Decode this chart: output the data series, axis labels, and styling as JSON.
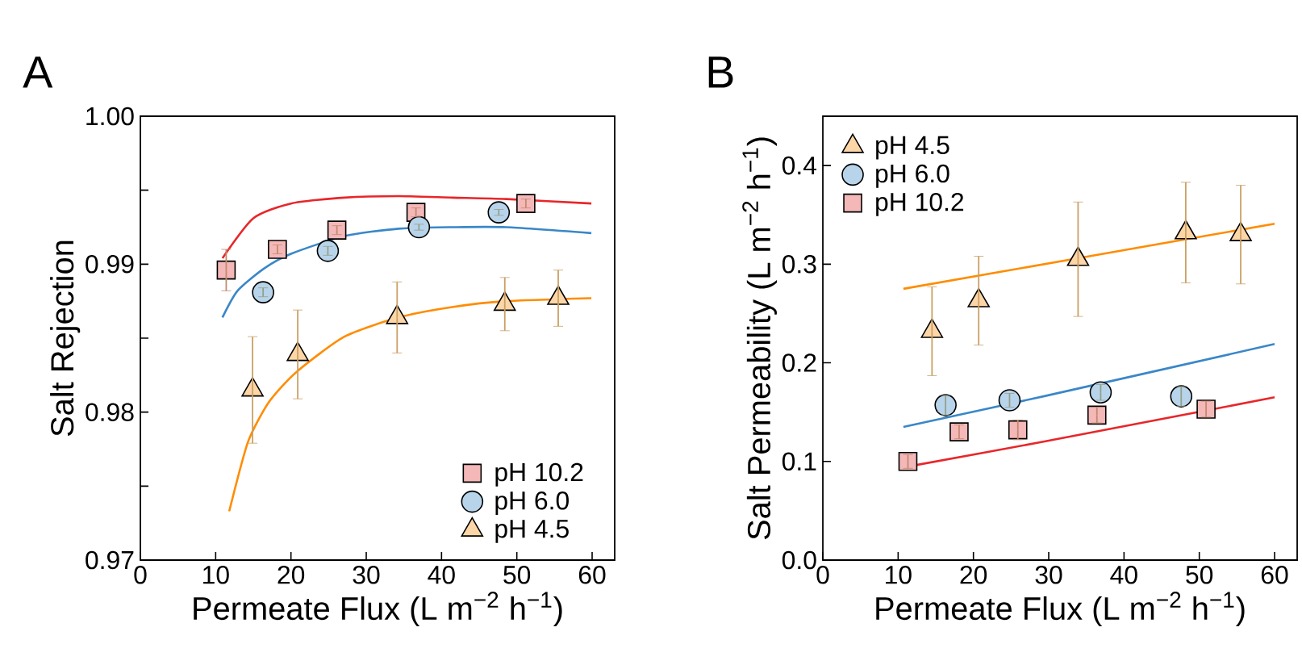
{
  "chart_data": [
    {
      "type": "scatter",
      "title": "A",
      "xlabel": "Permeate Flux (L m$^{−2}$ h$^{−1}$)",
      "ylabel": "Salt Rejection",
      "xlim": [
        0,
        63
      ],
      "ylim": [
        0.97,
        1.0
      ],
      "xticks": [
        0,
        10,
        20,
        30,
        40,
        50,
        60
      ],
      "yticks": [
        0.97,
        {
          "value": 0.975,
          "label": null
        },
        0.98,
        {
          "value": 0.985,
          "label": null
        },
        0.99,
        {
          "value": 0.995,
          "label": null
        },
        {
          "value": 1.0,
          "label": "1.00"
        }
      ],
      "legend": "bottom right",
      "grid": false,
      "series": [
        {
          "name": "pH 10.2",
          "marker": "square",
          "color": "#f4b8b8",
          "x": [
            11.4,
            18.2,
            26.1,
            36.6,
            51.2
          ],
          "values": [
            0.9896,
            0.991,
            0.9923,
            0.9935,
            0.9941
          ],
          "errors": [
            0.0014,
            0.0003,
            0.0003,
            0.0003,
            0.0003
          ]
        },
        {
          "name": "pH 6.0",
          "marker": "circle",
          "color": "#b8d4ea",
          "x": [
            16.3,
            24.9,
            37.0,
            47.6
          ],
          "values": [
            0.9881,
            0.9909,
            0.9925,
            0.9935
          ],
          "errors": [
            0.0003,
            0.0003,
            0.0002,
            0.0002
          ]
        },
        {
          "name": "pH 4.5",
          "marker": "triangle",
          "color": "#fdd6a8",
          "x": [
            14.9,
            20.9,
            34.1,
            48.4,
            55.5
          ],
          "values": [
            0.9815,
            0.9839,
            0.9864,
            0.9873,
            0.9877
          ],
          "errors": [
            0.0036,
            0.003,
            0.0024,
            0.0018,
            0.0019
          ]
        },
        {
          "type": "line",
          "color": "#e8262a",
          "x": [
            10.9,
            15,
            20,
            27.1,
            34.3,
            41.4,
            48.6,
            59.9
          ],
          "values": [
            0.9904,
            0.9931,
            0.9941,
            0.9945,
            0.9946,
            0.9945,
            0.9944,
            0.9941
          ]
        },
        {
          "type": "line",
          "color": "#3a87c8",
          "x": [
            10.9,
            12.9,
            16.4,
            20,
            27.1,
            34.3,
            41.4,
            48.6,
            59.9
          ],
          "values": [
            0.9864,
            0.9882,
            0.9897,
            0.9907,
            0.9919,
            0.9924,
            0.9925,
            0.9925,
            0.9921
          ]
        },
        {
          "type": "line",
          "color": "#ff8c00",
          "x": [
            11.8,
            14.3,
            17.1,
            20.7,
            27.1,
            34.3,
            41.4,
            48.6,
            59.9
          ],
          "values": [
            0.9733,
            0.978,
            0.9807,
            0.9827,
            0.9851,
            0.9864,
            0.9871,
            0.9875,
            0.9877
          ]
        }
      ]
    },
    {
      "type": "scatter",
      "title": "B",
      "xlabel": "Permeate Flux (L m$^{−2}$ h$^{−1}$)",
      "ylabel": "Salt Permeability (L m$^{−2}$ h$^{−1}$)",
      "xlim": [
        0,
        63
      ],
      "ylim": [
        0,
        0.45
      ],
      "xticks": [
        0,
        10,
        20,
        30,
        40,
        50,
        60
      ],
      "yticks": [
        {
          "value": 0,
          "label": "0.0"
        },
        0.1,
        0.2,
        0.3,
        0.4
      ],
      "legend": "top left",
      "grid": false,
      "series": [
        {
          "name": "pH 4.5",
          "marker": "triangle",
          "color": "#fdd6a8",
          "x": [
            14.5,
            20.7,
            33.9,
            48.2,
            55.5
          ],
          "values": [
            0.232,
            0.263,
            0.305,
            0.332,
            0.33
          ],
          "errors": [
            0.045,
            0.045,
            0.058,
            0.051,
            0.05
          ]
        },
        {
          "name": "pH 6.0",
          "marker": "circle",
          "color": "#b8d4ea",
          "x": [
            16.3,
            24.8,
            36.9,
            47.6
          ],
          "values": [
            0.157,
            0.162,
            0.17,
            0.166
          ],
          "errors": [
            0.01,
            0.007,
            0.008,
            0.01
          ]
        },
        {
          "name": "pH 10.2",
          "marker": "square",
          "color": "#f4b8b8",
          "x": [
            11.3,
            18.1,
            25.9,
            36.4,
            50.9
          ],
          "values": [
            0.1,
            0.13,
            0.132,
            0.147,
            0.153
          ],
          "errors": [
            0.007,
            0.007,
            0.01,
            0.008,
            0.008
          ]
        },
        {
          "type": "line",
          "color": "#ff8c00",
          "x": [
            10.7,
            35.4,
            60
          ],
          "values": [
            0.275,
            0.308,
            0.341
          ]
        },
        {
          "type": "line",
          "color": "#3a87c8",
          "x": [
            10.7,
            29.3,
            60
          ],
          "values": [
            0.135,
            0.166,
            0.219
          ]
        },
        {
          "type": "line",
          "color": "#e8262a",
          "x": [
            10.7,
            29.3,
            60
          ],
          "values": [
            0.094,
            0.12,
            0.165
          ]
        }
      ]
    }
  ]
}
